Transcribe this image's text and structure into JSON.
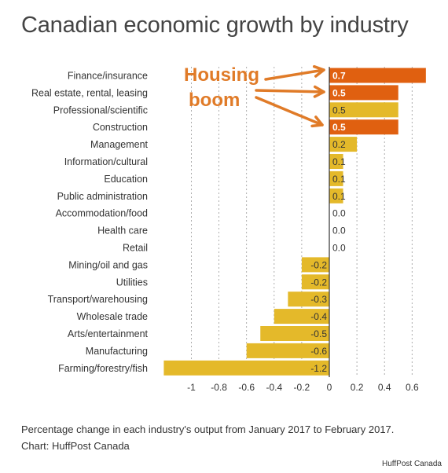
{
  "title": "Canadian economic growth by industry",
  "caption": {
    "line1": "Percentage change in each industry's output from January 2017 to February 2017.",
    "line2": "Chart: HuffPost Canada"
  },
  "credit": "HuffPost Canada",
  "annotation": {
    "line1": "Housing",
    "line2": "boom"
  },
  "colors": {
    "highlight": "#e06010",
    "normal": "#e4b92a",
    "axis": "#333333",
    "grid": "#999999",
    "label": "#333333",
    "annotation": "#e07b28"
  },
  "chart_data": {
    "type": "bar",
    "orientation": "horizontal",
    "title": "Canadian economic growth by industry",
    "xlabel": "",
    "ylabel": "",
    "xlim": [
      -1.2,
      0.7
    ],
    "categories": [
      "Finance/insurance",
      "Real estate, rental, leasing",
      "Professional/scientific",
      "Construction",
      "Management",
      "Information/cultural",
      "Education",
      "Public administration",
      "Accommodation/food",
      "Health care",
      "Retail",
      "Mining/oil and gas",
      "Utilities",
      "Transport/warehousing",
      "Wholesale trade",
      "Arts/entertainment",
      "Manufacturing",
      "Farming/forestry/fish"
    ],
    "values": [
      0.7,
      0.5,
      0.5,
      0.5,
      0.2,
      0.1,
      0.1,
      0.1,
      0.0,
      0.0,
      0.0,
      -0.2,
      -0.2,
      -0.3,
      -0.4,
      -0.5,
      -0.6,
      -1.2
    ],
    "value_labels": [
      "0.7",
      "0.5",
      "0.5",
      "0.5",
      "0.2",
      "0.1",
      "0.1",
      "0.1",
      "0.0",
      "0.0",
      "0.0",
      "-0.2",
      "-0.2",
      "-0.3",
      "-0.4",
      "-0.5",
      "-0.6",
      "-1.2"
    ],
    "highlighted": [
      true,
      true,
      false,
      true,
      false,
      false,
      false,
      false,
      false,
      false,
      false,
      false,
      false,
      false,
      false,
      false,
      false,
      false
    ],
    "xticks": [
      -1,
      -0.8,
      -0.6,
      -0.4,
      -0.2,
      0,
      0.2,
      0.4,
      0.6
    ],
    "xtick_labels": [
      "-1",
      "-0.8",
      "-0.6",
      "-0.4",
      "-0.2",
      "0",
      "0.2",
      "0.4",
      "0.6"
    ],
    "grid": "vertical dashed",
    "legend": "none"
  }
}
